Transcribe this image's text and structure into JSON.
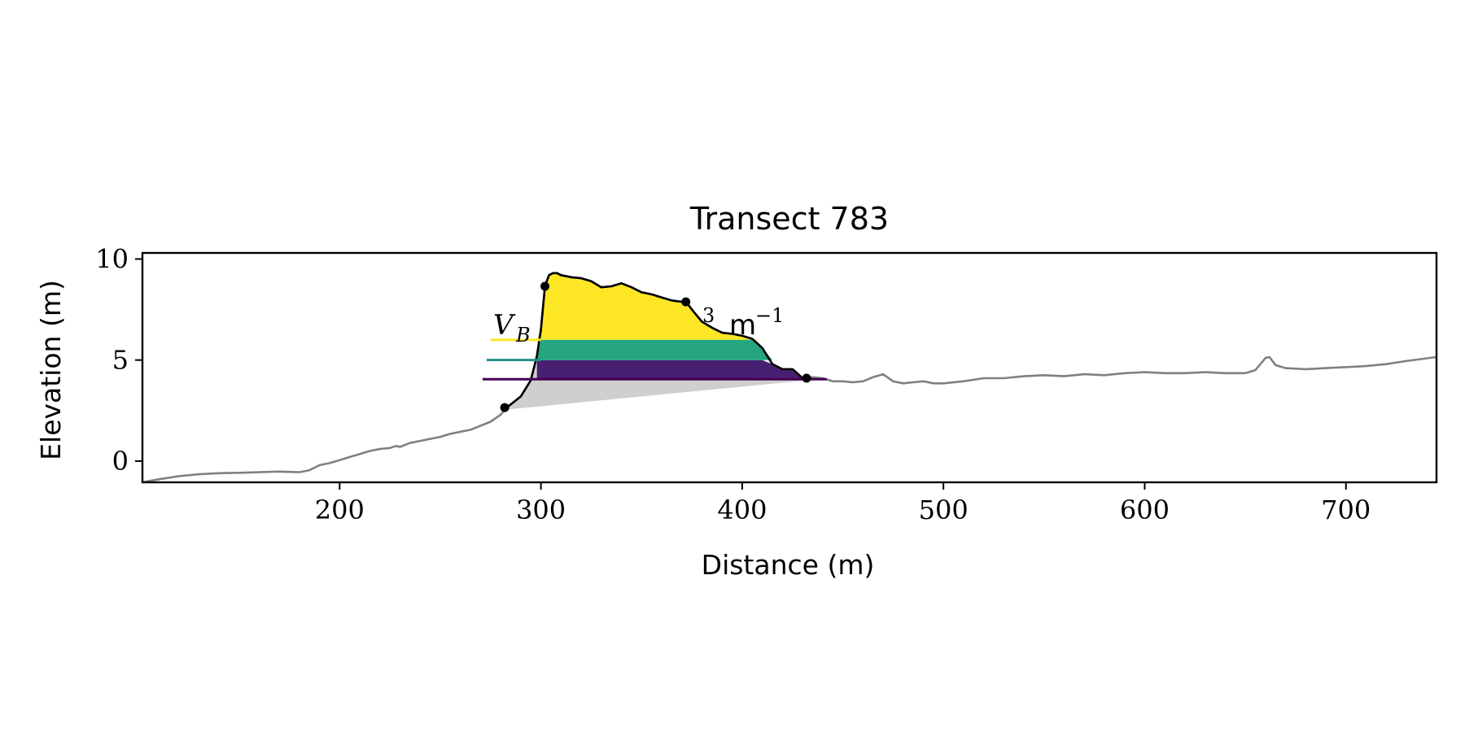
{
  "chart_data": {
    "type": "area",
    "title": "Transect 783",
    "xlabel": "Distance (m)",
    "ylabel": "Elevation (m)",
    "xlim": [
      102,
      745
    ],
    "ylim": [
      -1.05,
      10.3
    ],
    "xticks": [
      200,
      300,
      400,
      500,
      600,
      700
    ],
    "yticks": [
      0,
      5,
      10
    ],
    "grid": false,
    "colors": {
      "profile": "#808080",
      "outline": "#000000",
      "base_wedge": "#cfcfcf",
      "band_low": "#482072",
      "band_mid": "#25a580",
      "band_high": "#fde725",
      "line_low": "#440154",
      "line_mid": "#21918c",
      "line_high": "#fde725"
    },
    "annotation": {
      "v_prefix": "V",
      "v_sub": "B",
      "suffix_exp1": "3",
      "suffix_unit": "m",
      "suffix_exp2": "−1"
    },
    "profile": {
      "x": [
        102,
        110,
        120,
        130,
        140,
        150,
        160,
        170,
        180,
        185,
        190,
        195,
        200,
        205,
        210,
        215,
        220,
        225,
        228,
        230,
        235,
        240,
        245,
        250,
        255,
        260,
        265,
        270,
        275,
        280,
        283,
        290,
        295,
        298,
        300,
        302,
        304,
        306,
        308,
        310,
        315,
        320,
        325,
        330,
        335,
        340,
        345,
        350,
        355,
        360,
        365,
        370,
        372,
        375,
        380,
        385,
        390,
        395,
        400,
        405,
        410,
        415,
        420,
        425,
        430,
        435,
        440,
        445,
        450,
        455,
        460,
        465,
        470,
        475,
        480,
        485,
        490,
        495,
        500,
        510,
        520,
        530,
        540,
        550,
        560,
        570,
        580,
        590,
        600,
        610,
        620,
        630,
        640,
        650,
        655,
        660,
        662,
        665,
        670,
        680,
        690,
        700,
        710,
        720,
        730,
        745
      ],
      "y": [
        -1.05,
        -0.9,
        -0.75,
        -0.65,
        -0.6,
        -0.58,
        -0.55,
        -0.52,
        -0.55,
        -0.45,
        -0.2,
        -0.1,
        0.05,
        0.2,
        0.35,
        0.5,
        0.6,
        0.65,
        0.75,
        0.7,
        0.9,
        1.0,
        1.1,
        1.2,
        1.35,
        1.45,
        1.55,
        1.75,
        1.95,
        2.3,
        2.65,
        3.2,
        4.0,
        5.2,
        6.5,
        8.65,
        9.2,
        9.3,
        9.3,
        9.2,
        9.1,
        9.05,
        8.9,
        8.6,
        8.65,
        8.8,
        8.6,
        8.35,
        8.25,
        8.1,
        7.95,
        7.88,
        7.9,
        7.5,
        6.9,
        6.6,
        6.35,
        6.3,
        6.2,
        6.05,
        5.6,
        4.8,
        4.55,
        4.55,
        4.1,
        4.15,
        4.1,
        3.95,
        3.95,
        3.9,
        3.95,
        4.15,
        4.3,
        3.95,
        3.85,
        3.9,
        3.95,
        3.85,
        3.85,
        3.95,
        4.1,
        4.1,
        4.2,
        4.25,
        4.2,
        4.3,
        4.25,
        4.35,
        4.4,
        4.35,
        4.35,
        4.4,
        4.35,
        4.35,
        4.5,
        5.1,
        5.15,
        4.75,
        4.6,
        4.55,
        4.6,
        4.65,
        4.7,
        4.8,
        4.95,
        5.15
      ]
    },
    "landmarks": [
      {
        "name": "toe",
        "x": 282,
        "y": 2.65
      },
      {
        "name": "crest",
        "x": 302,
        "y": 8.65
      },
      {
        "name": "heel",
        "x": 372,
        "y": 7.88
      },
      {
        "name": "back-toe",
        "x": 432,
        "y": 4.1
      }
    ],
    "base_wedge": {
      "x_start": 283,
      "y_start": 2.55,
      "x_end": 438,
      "y_end": 4.05
    },
    "levels": [
      {
        "name": "low",
        "y": 4.05,
        "line_x_start": 271
      },
      {
        "name": "mid",
        "y": 5.0,
        "line_x_start": 273
      },
      {
        "name": "high",
        "y": 6.0,
        "line_x_start": 275
      }
    ],
    "volume_region": {
      "x_start": 298,
      "x_end": 442
    }
  }
}
